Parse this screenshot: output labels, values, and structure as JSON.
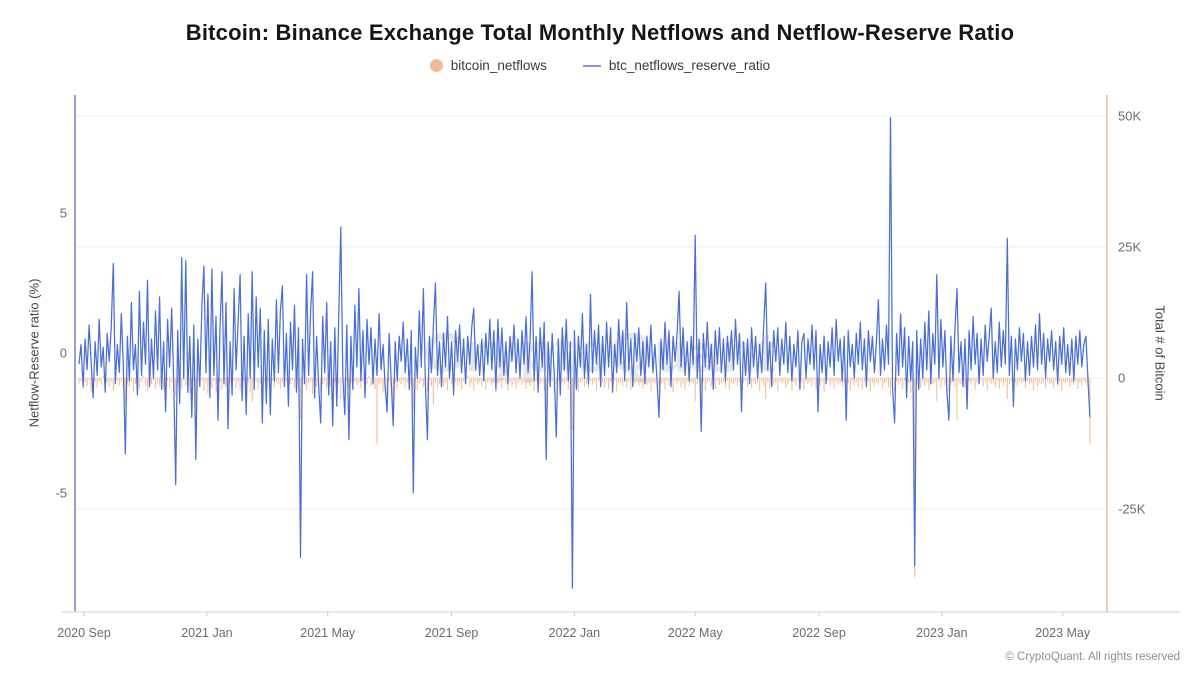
{
  "title": "Bitcoin: Binance Exchange Total Monthly Netflows and Netflow-Reserve Ratio",
  "watermark": "CryptoQuant",
  "footer": "© CryptoQuant. All rights reserved",
  "legend": {
    "items": [
      {
        "label": "bitcoin_netflows",
        "swatch": "circle",
        "color": "#f0bb94"
      },
      {
        "label": "btc_netflows_reserve_ratio",
        "swatch": "line",
        "color": "#8e96d8"
      }
    ]
  },
  "chart_data": {
    "type": "line",
    "note": "dual-axis chart: orange daily bars (right axis, thousand BTC) + blue line (left axis, %)",
    "axes": {
      "left": {
        "title": "Netflow-Reserve ratio (%)",
        "ticks": [
          5,
          0,
          -5
        ],
        "range": [
          -9.2,
          9.2
        ]
      },
      "right": {
        "title": "Total # of Bitcoin",
        "tick_labels": [
          "50K",
          "25K",
          "0",
          "-25K"
        ],
        "tick_values": [
          50,
          25,
          0,
          -25
        ],
        "unit": "thousand BTC",
        "range": [
          -44.7,
          54
        ]
      }
    },
    "x_domain_days": 1025,
    "x_ticks": [
      {
        "label": "2020 Sep",
        "day": 9
      },
      {
        "label": "2021 Jan",
        "day": 131
      },
      {
        "label": "2021 May",
        "day": 251
      },
      {
        "label": "2021 Sep",
        "day": 374
      },
      {
        "label": "2022 Jan",
        "day": 496
      },
      {
        "label": "2022 May",
        "day": 616
      },
      {
        "label": "2022 Sep",
        "day": 739
      },
      {
        "label": "2023 Jan",
        "day": 861
      },
      {
        "label": "2023 May",
        "day": 981
      }
    ],
    "sample_start_day": 4,
    "sample_step_days": 2,
    "series": [
      {
        "name": "btc_netflows_reserve_ratio",
        "type": "line",
        "axis": "left",
        "color": "#4a6fd4",
        "values": [
          -0.4,
          0.3,
          -1.2,
          0.5,
          -0.6,
          1.0,
          -0.3,
          -1.6,
          0.4,
          -0.8,
          1.2,
          -0.5,
          0.2,
          -1.4,
          0.7,
          -0.3,
          0.9,
          3.2,
          -1.1,
          0.3,
          -0.7,
          1.4,
          -0.4,
          -3.6,
          0.6,
          -1.0,
          1.8,
          -0.6,
          0.3,
          -1.5,
          2.2,
          -0.8,
          1.1,
          -0.4,
          2.6,
          -1.2,
          0.5,
          -0.9,
          1.5,
          -0.6,
          2.0,
          -1.3,
          0.4,
          -2.1,
          1.2,
          -0.5,
          1.6,
          -1.0,
          -4.7,
          0.8,
          -1.8,
          3.4,
          -0.9,
          3.3,
          -1.4,
          0.6,
          -2.3,
          1.0,
          -3.8,
          0.5,
          -1.2,
          1.7,
          3.1,
          -0.7,
          2.1,
          -1.6,
          3.0,
          -0.8,
          1.3,
          -2.4,
          0.9,
          2.9,
          -1.1,
          1.8,
          -2.7,
          0.4,
          -1.5,
          2.3,
          -0.6,
          1.1,
          2.8,
          -1.7,
          0.6,
          -2.2,
          1.4,
          -0.9,
          2.9,
          -1.3,
          2.0,
          -0.5,
          1.6,
          -2.5,
          0.8,
          -1.8,
          1.2,
          -2.2,
          0.5,
          -1.0,
          1.9,
          -0.7,
          1.5,
          2.4,
          -1.2,
          0.7,
          -1.9,
          1.1,
          -0.6,
          1.7,
          -1.4,
          0.9,
          -7.3,
          0.5,
          -1.1,
          2.8,
          -0.8,
          1.5,
          2.9,
          -1.6,
          0.6,
          -1.2,
          -2.5,
          1.3,
          -0.7,
          1.8,
          -1.5,
          0.4,
          -2.6,
          0.9,
          -1.9,
          1.4,
          4.5,
          -0.8,
          -2.2,
          1.0,
          -3.1,
          0.6,
          -1.3,
          1.7,
          -0.5,
          2.3,
          -1.0,
          0.8,
          -1.6,
          1.2,
          -0.4,
          0.9,
          -1.1,
          0.5,
          -0.8,
          1.4,
          -0.6,
          0.3,
          -1.2,
          -2.1,
          0.7,
          -0.9,
          -2.6,
          0.4,
          -1.0,
          0.6,
          -0.3,
          1.1,
          -0.7,
          0.5,
          -1.3,
          0.8,
          -5.0,
          0.2,
          -0.9,
          1.5,
          -0.5,
          2.3,
          -1.1,
          -3.1,
          0.6,
          -0.7,
          1.0,
          2.5,
          -0.8,
          0.4,
          -1.2,
          0.7,
          -0.5,
          1.3,
          -0.9,
          0.4,
          -1.5,
          0.8,
          -0.3,
          1.0,
          -0.7,
          0.5,
          -1.1,
          0.6,
          -0.4,
          0.9,
          1.6,
          -0.6,
          0.3,
          -0.8,
          0.5,
          -1.0,
          0.7,
          -0.4,
          1.2,
          -0.6,
          0.8,
          -1.3,
          1.2,
          -0.5,
          0.9,
          -0.8,
          0.4,
          -1.1,
          0.6,
          -0.3,
          1.0,
          -0.7,
          0.5,
          -0.9,
          0.8,
          -0.4,
          1.3,
          -0.7,
          0.5,
          2.9,
          -1.0,
          0.6,
          -1.4,
          0.9,
          -0.5,
          1.1,
          -3.8,
          0.4,
          -1.2,
          0.7,
          -0.8,
          -3.0,
          0.5,
          -1.5,
          0.9,
          -0.6,
          1.2,
          -1.0,
          0.4,
          -8.4,
          0.8,
          -1.3,
          0.6,
          -0.5,
          1.4,
          -0.9,
          0.3,
          -1.1,
          2.1,
          -0.7,
          0.8,
          -0.4,
          1.0,
          -1.2,
          0.6,
          -0.8,
          1.1,
          -0.5,
          0.9,
          -1.4,
          0.3,
          -0.7,
          1.2,
          -0.4,
          0.8,
          -1.0,
          1.8,
          -0.6,
          0.5,
          -1.2,
          0.7,
          -0.3,
          0.9,
          -0.8,
          0.4,
          -1.1,
          0.6,
          -0.5,
          1.0,
          -0.7,
          0.3,
          -0.9,
          -2.3,
          0.5,
          -0.6,
          1.1,
          -0.4,
          0.8,
          -1.2,
          0.6,
          -0.3,
          0.7,
          2.2,
          -0.5,
          0.9,
          -0.8,
          0.4,
          -1.0,
          0.6,
          -0.4,
          4.2,
          -0.9,
          0.5,
          -2.8,
          0.7,
          -0.5,
          1.1,
          -0.6,
          0.3,
          -1.3,
          0.8,
          -0.4,
          0.9,
          -0.7,
          0.5,
          -1.0,
          0.6,
          -0.3,
          0.8,
          -0.6,
          1.2,
          -0.4,
          0.7,
          -2.1,
          0.4,
          -0.8,
          0.5,
          -1.1,
          0.9,
          -0.5,
          0.6,
          -0.9,
          0.3,
          -0.7,
          1.0,
          2.5,
          -0.6,
          0.4,
          -1.2,
          0.8,
          -0.3,
          0.9,
          -0.8,
          0.5,
          -0.4,
          1.1,
          -0.7,
          0.6,
          -1.0,
          0.3,
          -0.5,
          0.8,
          -1.3,
          0.4,
          0.7,
          -0.9,
          0.5,
          -0.4,
          1.0,
          -0.6,
          0.8,
          -2.1,
          0.3,
          -0.7,
          0.6,
          -1.1,
          0.4,
          -0.5,
          0.9,
          -0.8,
          1.2,
          -0.3,
          0.5,
          -1.0,
          0.6,
          -2.4,
          0.8,
          -0.5,
          0.3,
          -0.9,
          0.7,
          -0.4,
          1.1,
          -0.6,
          0.5,
          -1.2,
          0.8,
          -0.3,
          0.6,
          -0.7,
          0.4,
          1.9,
          -0.8,
          0.5,
          -0.6,
          1.0,
          -0.4,
          8.4,
          -1.2,
          -2.5,
          0.7,
          -0.8,
          1.4,
          -0.5,
          0.9,
          -1.6,
          0.6,
          -1.0,
          0.4,
          -7.6,
          0.8,
          -1.3,
          0.5,
          -0.9,
          1.1,
          -0.6,
          1.5,
          -1.1,
          0.7,
          -0.4,
          2.8,
          -0.9,
          1.2,
          -0.5,
          0.8,
          -1.4,
          -2.4,
          0.6,
          -1.0,
          0.9,
          2.3,
          -0.7,
          0.4,
          -1.2,
          0.5,
          -2.0,
          0.8,
          -0.6,
          1.3,
          -0.4,
          0.7,
          -1.1,
          0.5,
          -0.8,
          1.0,
          -0.3,
          0.6,
          1.6,
          -0.9,
          0.4,
          -0.7,
          1.1,
          -0.5,
          0.8,
          -0.4,
          4.1,
          -0.8,
          0.6,
          -1.9,
          0.5,
          -0.6,
          0.9,
          -0.3,
          0.7,
          -1.0,
          0.4,
          -0.8,
          0.6,
          -0.5,
          1.0,
          -0.6,
          1.4,
          -0.4,
          0.7,
          -0.9,
          0.5,
          -0.3,
          0.8,
          -0.6,
          0.4,
          -1.1,
          0.6,
          -0.4,
          0.9,
          -0.7,
          0.3,
          -0.8,
          0.5,
          -1.0,
          0.6,
          -0.4,
          0.8,
          -0.5,
          0.3,
          0.6,
          -0.9,
          -2.3
        ]
      },
      {
        "name": "bitcoin_netflows",
        "type": "bar",
        "axis": "right",
        "color": "#eeab78",
        "unit": "thousand BTC",
        "values": [
          -1.2,
          -0.6,
          -2.1,
          -0.9,
          -1.5,
          -0.4,
          -2.6,
          -1.1,
          -0.7,
          -1.8,
          -0.5,
          -1.3,
          0.4,
          -2.2,
          -0.8,
          -1.6,
          -0.6,
          -2.4,
          -1.0,
          -0.5,
          -1.4,
          -0.7,
          -2.0,
          -5.0,
          -0.9,
          -1.7,
          -0.6,
          -2.8,
          -1.2,
          -0.5,
          -1.9,
          -0.8,
          0.5,
          -1.5,
          -2.5,
          -0.7,
          -1.1,
          -0.4,
          -2.0,
          -0.9,
          -1.6,
          -0.5,
          -2.3,
          -1.0,
          -0.6,
          -1.8,
          -0.9,
          -2.7,
          -3.5,
          -1.2,
          -0.7,
          -2.1,
          -0.5,
          -1.4,
          -0.8,
          -2.9,
          -1.1,
          -0.6,
          -5.5,
          -0.9,
          -1.7,
          -0.5,
          -2.4,
          -1.0,
          -3.0,
          -0.7,
          -1.9,
          -0.6,
          -2.6,
          -1.3,
          -0.8,
          -2.2,
          -0.5,
          -1.6,
          -3.3,
          -0.9,
          -1.2,
          -0.6,
          -2.0,
          -0.8,
          -2.5,
          -1.1,
          -0.6,
          -1.9,
          -0.8,
          -2.8,
          -4.5,
          -1.3,
          -0.7,
          -2.1,
          -1.0,
          -3.2,
          -0.6,
          -1.5,
          -0.9,
          -2.3,
          -0.5,
          -1.8,
          -0.7,
          -1.2,
          -2.0,
          -0.8,
          -1.5,
          -0.6,
          -2.7,
          -1.1,
          -0.5,
          -1.9,
          -0.9,
          -2.4,
          -8.0,
          -1.4,
          -0.7,
          -2.2,
          -1.0,
          -0.6,
          -3.1,
          -0.8,
          -1.7,
          -0.5,
          -2.9,
          -1.2,
          -0.6,
          -2.0,
          -0.9,
          -1.5,
          -3.4,
          -0.7,
          -2.3,
          -1.1,
          -4.0,
          -0.8,
          -2.6,
          -0.5,
          -1.8,
          -1.0,
          -2.2,
          -0.6,
          -1.4,
          -0.9,
          -1.9,
          -0.7,
          -2.5,
          -1.2,
          0.4,
          -1.6,
          -0.8,
          -2.1,
          -12.5,
          -1.3,
          -0.9,
          -2.8,
          -1.0,
          -3.6,
          -0.6,
          -1.7,
          -4.8,
          -0.9,
          -2.2,
          -0.7,
          -1.2,
          -0.5,
          -1.9,
          -0.8,
          -2.4,
          -1.4,
          -6.0,
          -0.7,
          -2.3,
          -1.0,
          -0.6,
          -1.8,
          -0.9,
          -2.6,
          -0.5,
          -1.5,
          -5.0,
          -0.8,
          -2.0,
          -1.1,
          -0.6,
          -1.7,
          -0.9,
          -2.4,
          -0.5,
          -1.2,
          -2.9,
          -0.7,
          -1.5,
          -0.8,
          -2.1,
          -0.6,
          -1.0,
          0.5,
          -1.8,
          -0.9,
          -2.5,
          -0.6,
          -1.3,
          -0.8,
          -1.6,
          -0.7,
          -2.2,
          -0.9,
          -0.5,
          -1.4,
          -0.8,
          -2.7,
          -1.1,
          -0.6,
          -1.9,
          -0.5,
          -1.2,
          -2.4,
          -0.8,
          -1.7,
          -0.6,
          -2.0,
          -1.0,
          -0.7,
          -1.3,
          -0.6,
          -2.1,
          -0.8,
          -1.5,
          -0.9,
          -2.6,
          -0.5,
          -1.8,
          -1.1,
          -0.7,
          -2.3,
          -6.5,
          -0.9,
          -1.6,
          -0.6,
          -2.8,
          -1.2,
          -0.5,
          -1.9,
          -0.8,
          -1.4,
          -0.6,
          -2.2,
          -1.0,
          -10.0,
          -1.5,
          -0.7,
          -2.5,
          -0.9,
          -0.5,
          -1.7,
          -1.1,
          -2.0,
          -0.6,
          -1.3,
          -0.8,
          -2.4,
          -0.5,
          -1.6,
          -0.9,
          -1.8,
          -0.5,
          -2.1,
          -0.7,
          -1.2,
          -0.6,
          -2.6,
          -1.0,
          -0.8,
          -1.5,
          -0.5,
          -1.9,
          -0.7,
          -2.3,
          -0.9,
          -1.1,
          -0.6,
          -1.6,
          -0.8,
          -2.0,
          -0.6,
          -1.3,
          -0.9,
          -2.5,
          -0.7,
          -1.0,
          -0.5,
          -1.7,
          -1.2,
          -0.8,
          -2.2,
          -0.6,
          -1.4,
          -0.9,
          -2.7,
          -0.5,
          -1.1,
          -0.7,
          -1.8,
          -0.9,
          -2.3,
          -0.6,
          -1.5,
          -0.8,
          -1.0,
          -4.5,
          -1.2,
          -0.5,
          -1.9,
          -0.7,
          -2.4,
          -0.9,
          -0.6,
          -1.6,
          -0.8,
          -2.1,
          -0.5,
          -1.3,
          -1.0,
          -0.7,
          -1.8,
          -0.5,
          -2.2,
          -0.9,
          -1.1,
          -0.6,
          -1.4,
          -0.8,
          -2.6,
          -1.0,
          -0.5,
          -1.7,
          -0.9,
          -2.0,
          -0.6,
          -1.2,
          -0.8,
          -2.4,
          -0.7,
          -1.5,
          -4.0,
          -0.8,
          -2.1,
          -0.6,
          -1.3,
          -0.9,
          -2.5,
          -0.5,
          -1.0,
          -0.7,
          -1.9,
          -1.1,
          -0.6,
          -2.3,
          -0.8,
          -1.4,
          -0.5,
          -1.8,
          -0.9,
          -2.2,
          -0.6,
          -1.1,
          -0.8,
          -1.6,
          -0.5,
          -2.0,
          -0.9,
          -1.3,
          -0.7,
          -2.7,
          -1.0,
          -0.5,
          -1.5,
          -0.8,
          -2.1,
          -0.6,
          -1.2,
          -0.9,
          -1.7,
          -0.8,
          -5.0,
          -1.0,
          -2.4,
          -0.6,
          -1.4,
          -0.9,
          -1.8,
          -0.5,
          -2.2,
          -0.7,
          -1.1,
          -0.6,
          -2.5,
          -0.9,
          -1.6,
          -0.8,
          -1.2,
          -0.5,
          -2.0,
          -1.0,
          -0.7,
          -1.8,
          -3.5,
          -0.9,
          -2.6,
          -0.6,
          -1.3,
          -0.8,
          -2.1,
          -0.5,
          -1.6,
          -1.0,
          -2.8,
          -0.7,
          -38.0,
          -1.2,
          -0.6,
          -1.9,
          -0.9,
          -1.5,
          -0.8,
          -2.3,
          -0.6,
          -1.1,
          -0.9,
          -4.5,
          -0.7,
          -2.0,
          -0.5,
          -1.4,
          -0.8,
          -2.6,
          -1.0,
          -0.6,
          -1.7,
          -8.0,
          -0.9,
          -1.2,
          -0.5,
          -1.9,
          -2.8,
          -0.7,
          -1.3,
          -0.6,
          -2.2,
          -0.9,
          -1.0,
          -0.5,
          -1.6,
          -0.8,
          -2.4,
          -0.6,
          -1.1,
          -0.9,
          -1.8,
          -0.5,
          -2.0,
          -0.7,
          -1.4,
          -0.8,
          -4.0,
          -1.2,
          -0.6,
          -2.1,
          -0.9,
          -1.5,
          -0.5,
          -1.0,
          -0.7,
          -1.9,
          -0.6,
          -1.3,
          -0.8,
          -2.3,
          -0.5,
          -1.6,
          -0.9,
          -1.1,
          -0.7,
          -1.8,
          -0.6,
          -1.2,
          -0.9,
          -2.0,
          -0.5,
          -1.5,
          -0.8,
          -2.5,
          -0.7,
          -1.0,
          -0.6,
          -1.7,
          -0.9,
          -1.3,
          -0.5,
          -2.1,
          -0.8,
          -1.4,
          -0.6,
          -1.0,
          -1.6,
          -12.5
        ]
      }
    ],
    "style": {
      "grid_color": "#ededf2",
      "left_axis_line_color": "#8d95ce",
      "right_axis_line_color": "#f0c79e",
      "bottom_axis_line_color": "#d9d9e0",
      "tick_text_color": "#6b6b70"
    }
  }
}
